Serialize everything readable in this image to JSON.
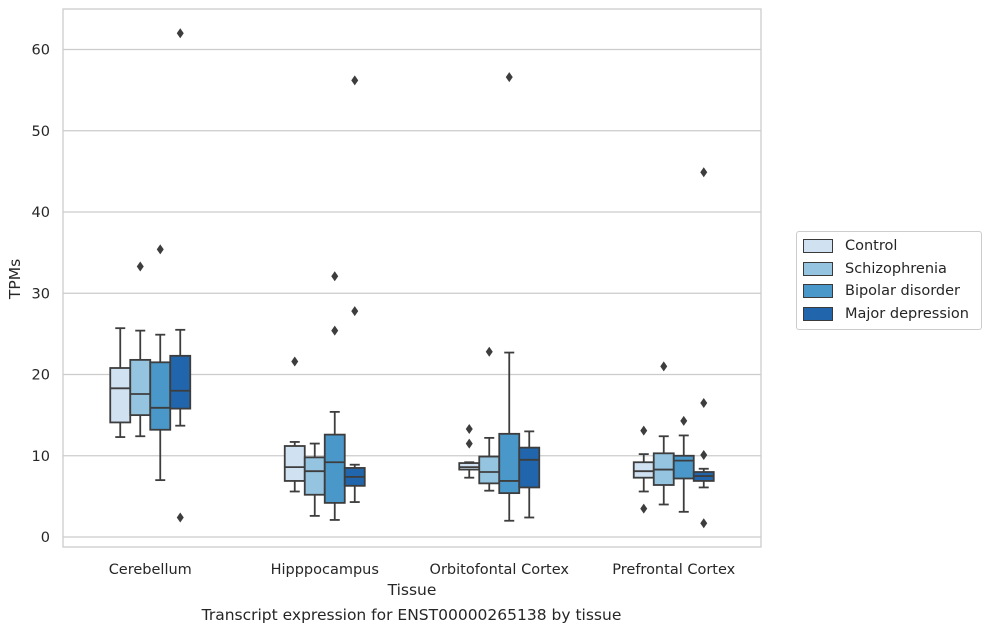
{
  "caption": "Transcript expression for ENST00000265138 by tissue",
  "chart_data": {
    "type": "box",
    "title": "",
    "xlabel": "Tissue",
    "ylabel": "TPMs",
    "ylim": [
      -1.2,
      65
    ],
    "yticks": [
      0,
      10,
      20,
      30,
      40,
      50,
      60
    ],
    "grid": "horizontal",
    "legend_position": "right",
    "categories": [
      "Cerebellum",
      "Hipppocampus",
      "Orbitofontal Cortex",
      "Prefrontal Cortex"
    ],
    "series": [
      {
        "name": "Control",
        "color": "#d0e1f2",
        "boxes": [
          {
            "q1": 14.1,
            "median": 18.3,
            "q3": 20.8,
            "whisker_low": 12.3,
            "whisker_high": 25.7,
            "outliers": []
          },
          {
            "q1": 6.9,
            "median": 8.6,
            "q3": 11.2,
            "whisker_low": 5.6,
            "whisker_high": 11.7,
            "outliers": [
              21.6
            ]
          },
          {
            "q1": 8.3,
            "median": 8.6,
            "q3": 9.1,
            "whisker_low": 7.3,
            "whisker_high": 9.2,
            "outliers": [
              13.3,
              11.5
            ]
          },
          {
            "q1": 7.3,
            "median": 8.1,
            "q3": 9.2,
            "whisker_low": 5.6,
            "whisker_high": 10.2,
            "outliers": [
              13.1,
              3.5
            ]
          }
        ]
      },
      {
        "name": "Schizophrenia",
        "color": "#94c4df",
        "boxes": [
          {
            "q1": 15.0,
            "median": 17.6,
            "q3": 21.8,
            "whisker_low": 12.4,
            "whisker_high": 25.4,
            "outliers": [
              33.3
            ]
          },
          {
            "q1": 5.2,
            "median": 8.1,
            "q3": 9.8,
            "whisker_low": 2.6,
            "whisker_high": 11.5,
            "outliers": []
          },
          {
            "q1": 6.6,
            "median": 8.0,
            "q3": 9.9,
            "whisker_low": 5.7,
            "whisker_high": 12.2,
            "outliers": [
              22.8
            ]
          },
          {
            "q1": 6.4,
            "median": 8.3,
            "q3": 10.3,
            "whisker_low": 4.0,
            "whisker_high": 12.4,
            "outliers": [
              21.0
            ]
          }
        ]
      },
      {
        "name": "Bipolar disorder",
        "color": "#4a98c9",
        "boxes": [
          {
            "q1": 13.2,
            "median": 15.9,
            "q3": 21.5,
            "whisker_low": 7.0,
            "whisker_high": 24.9,
            "outliers": [
              35.4
            ]
          },
          {
            "q1": 4.2,
            "median": 9.2,
            "q3": 12.6,
            "whisker_low": 2.1,
            "whisker_high": 15.4,
            "outliers": [
              32.1,
              25.4
            ]
          },
          {
            "q1": 5.4,
            "median": 6.9,
            "q3": 12.7,
            "whisker_low": 2.0,
            "whisker_high": 22.7,
            "outliers": [
              56.6
            ]
          },
          {
            "q1": 7.2,
            "median": 9.4,
            "q3": 10.0,
            "whisker_low": 3.1,
            "whisker_high": 12.5,
            "outliers": [
              14.3
            ]
          }
        ]
      },
      {
        "name": "Major depression",
        "color": "#2166ac",
        "boxes": [
          {
            "q1": 15.8,
            "median": 18.0,
            "q3": 22.3,
            "whisker_low": 13.7,
            "whisker_high": 25.5,
            "outliers": [
              62.0,
              2.4
            ]
          },
          {
            "q1": 6.3,
            "median": 7.4,
            "q3": 8.5,
            "whisker_low": 4.3,
            "whisker_high": 8.9,
            "outliers": [
              56.2,
              27.8
            ]
          },
          {
            "q1": 6.1,
            "median": 9.5,
            "q3": 11.0,
            "whisker_low": 2.4,
            "whisker_high": 13.0,
            "outliers": []
          },
          {
            "q1": 6.9,
            "median": 7.5,
            "q3": 8.0,
            "whisker_low": 6.1,
            "whisker_high": 8.4,
            "outliers": [
              44.9,
              16.5,
              10.1,
              1.7
            ]
          }
        ]
      }
    ]
  }
}
